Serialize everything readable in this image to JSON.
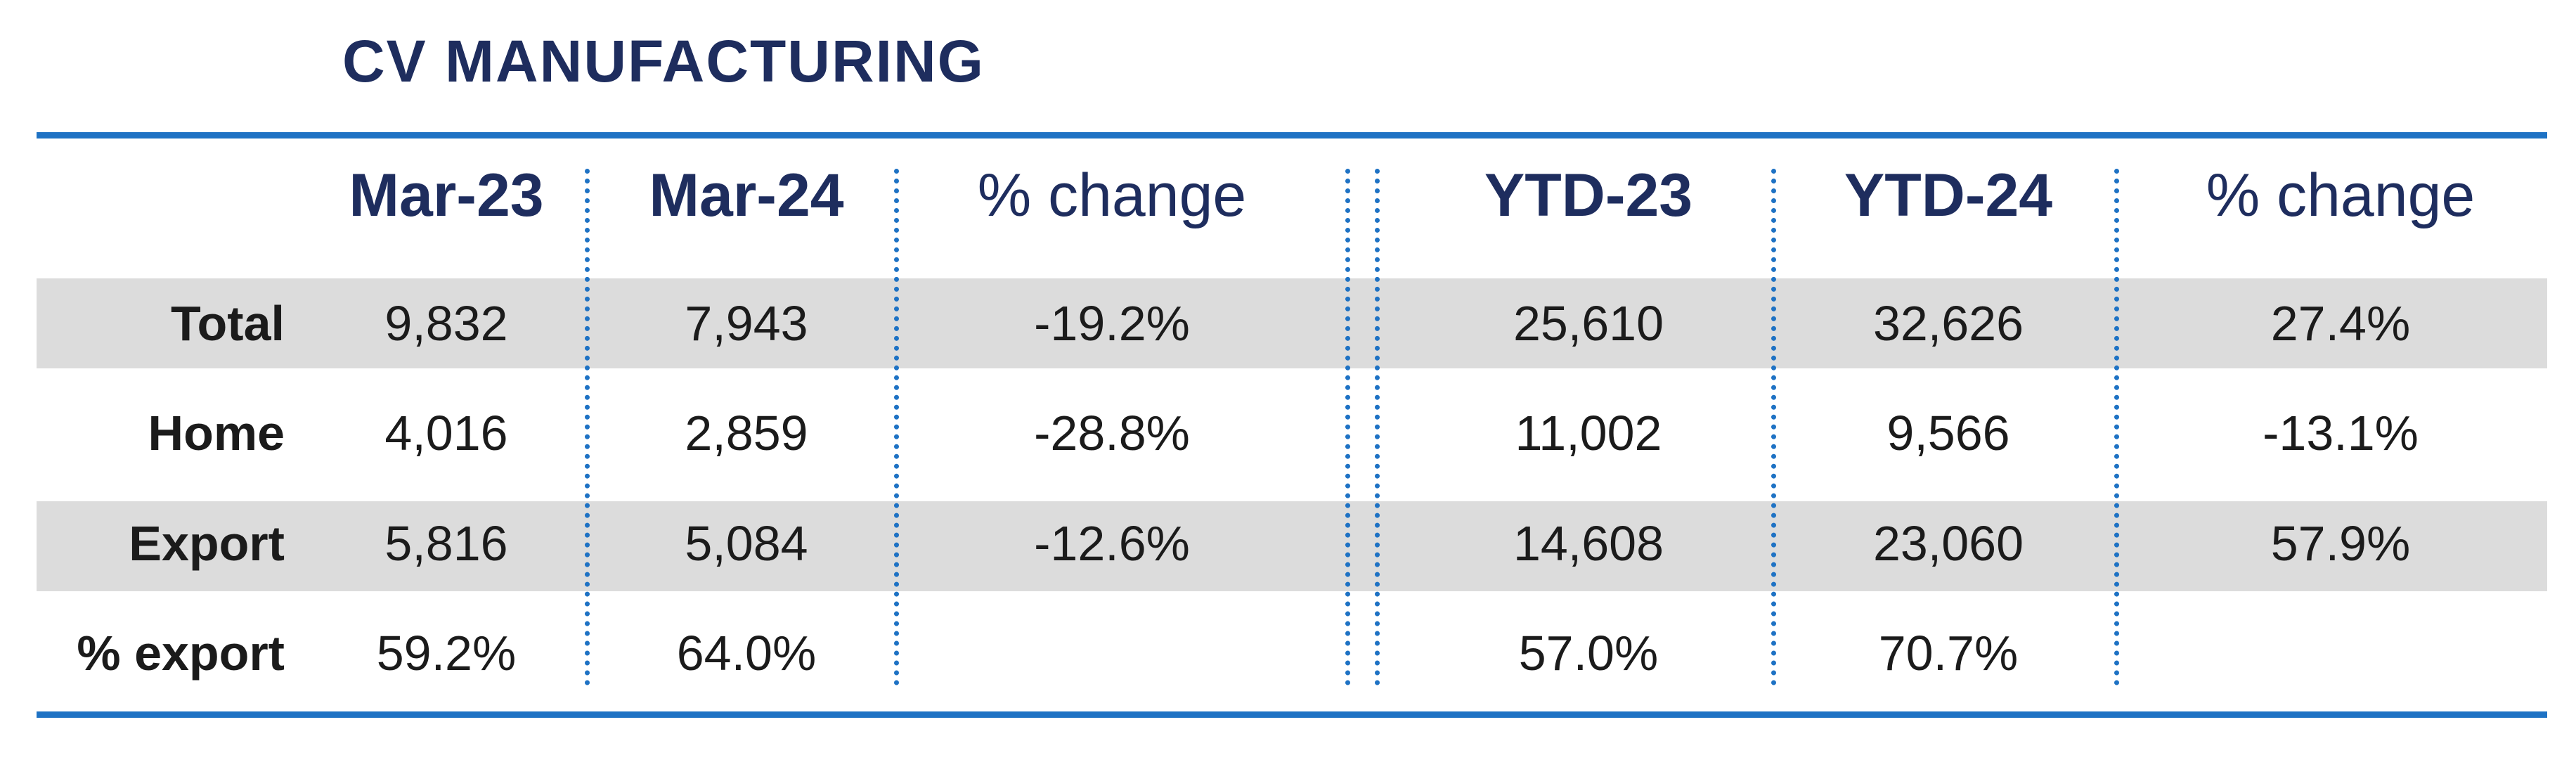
{
  "title": "CV MANUFACTURING",
  "chart_data": {
    "type": "table",
    "title": "CV MANUFACTURING",
    "columns": [
      "Mar-23",
      "Mar-24",
      "% change",
      "YTD-23",
      "YTD-24",
      "% change"
    ],
    "rows": [
      {
        "label": "Total",
        "values": [
          "9,832",
          "7,943",
          "-19.2%",
          "25,610",
          "32,626",
          "27.4%"
        ]
      },
      {
        "label": "Home",
        "values": [
          "4,016",
          "2,859",
          "-28.8%",
          "11,002",
          "9,566",
          "-13.1%"
        ]
      },
      {
        "label": "Export",
        "values": [
          "5,816",
          "5,084",
          "-12.6%",
          "14,608",
          "23,060",
          "57.9%"
        ]
      },
      {
        "label": "% export",
        "values": [
          "59.2%",
          "64.0%",
          "",
          "57.0%",
          "70.7%",
          ""
        ]
      }
    ],
    "colors": {
      "title": "#1e2d5e",
      "rules": "#1e72c4",
      "shaded_rows": "#dcdcdc"
    }
  }
}
